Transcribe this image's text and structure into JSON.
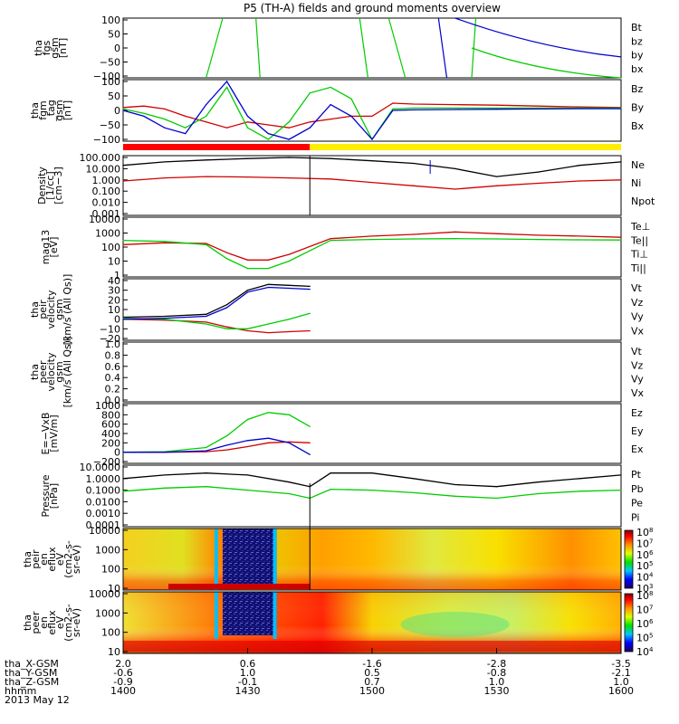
{
  "title": "P5 (TH-A) fields and ground moments overview",
  "date": "2013 May 12",
  "colors": {
    "red": "#d00000",
    "green": "#00cc00",
    "blue": "#0000d0",
    "black": "#000000",
    "yellow": "#ffee00",
    "bar_red": "#ff0000"
  },
  "panels": [
    {
      "id": "fgs",
      "ylabel": [
        "tha",
        "fgs",
        "gsm",
        "[nT]"
      ],
      "yticks": [
        "100",
        "50",
        "0",
        "−50",
        "−100"
      ],
      "legend": [
        "Bt",
        "bz",
        "by",
        "bx"
      ],
      "legend_colors": [
        "black",
        "red",
        "green",
        "blue"
      ]
    },
    {
      "id": "fgm",
      "ylabel": [
        "tha",
        "fgm",
        "_tag",
        "gsm",
        "[nT]"
      ],
      "yticks": [
        "100",
        "50",
        "0",
        "−50",
        "−100"
      ],
      "legend": [
        "Bz",
        "By",
        "Bx"
      ],
      "legend_colors": [
        "red",
        "green",
        "blue"
      ]
    },
    {
      "id": "density",
      "ylabel": [
        "Density",
        "[1/cc]",
        "[cm−3]"
      ],
      "yticks": [
        "100.000",
        "10.000",
        "1.000",
        "0.100",
        "0.010",
        "0.001"
      ],
      "legend": [
        "Ne",
        "Ni",
        "Npot"
      ],
      "legend_colors": [
        "red",
        "black",
        "blue"
      ]
    },
    {
      "id": "temp",
      "ylabel": [
        "mag13",
        "[eV]"
      ],
      "yticks": [
        "10000",
        "1000",
        "100",
        "10",
        "1"
      ],
      "legend": [
        "Te⊥",
        "Te||",
        "Ti⊥",
        "Ti||"
      ],
      "legend_colors": [
        "red",
        "black",
        "blue",
        "green"
      ]
    },
    {
      "id": "peir",
      "ylabel": [
        "tha",
        "peir",
        "velocity",
        "gsm",
        "[km/s (All Qs)]"
      ],
      "yticks": [
        "40",
        "30",
        "20",
        "10",
        "0",
        "−10",
        "−20"
      ],
      "legend": [
        "Vt",
        "Vz",
        "Vy",
        "Vx"
      ],
      "legend_colors": [
        "black",
        "red",
        "green",
        "blue"
      ]
    },
    {
      "id": "peer",
      "ylabel": [
        "tha",
        "peer",
        "velocity",
        "gsm",
        "[km/s (All Qs)]"
      ],
      "yticks": [
        "1.0",
        "0.8",
        "0.6",
        "0.4",
        "0.2",
        "0.0"
      ],
      "legend": [
        "Vt",
        "Vz",
        "Vy",
        "Vx"
      ],
      "legend_colors": [
        "black",
        "red",
        "green",
        "blue"
      ]
    },
    {
      "id": "efield",
      "ylabel": [
        "E=−VxB",
        "[mV/m]"
      ],
      "yticks": [
        "1000",
        "800",
        "600",
        "400",
        "200",
        "0",
        "−200"
      ],
      "legend": [
        "Ez",
        "Ey",
        "Ex"
      ],
      "legend_colors": [
        "red",
        "green",
        "blue"
      ]
    },
    {
      "id": "pressure",
      "ylabel": [
        "Pressure",
        "[nPa]"
      ],
      "yticks": [
        "10.0000",
        "1.0000",
        "0.1000",
        "0.0100",
        "0.0010",
        "0.0001"
      ],
      "legend": [
        "Pt",
        "Pb",
        "Pe",
        "Pi"
      ],
      "legend_colors": [
        "black",
        "red",
        "green",
        "blue"
      ]
    },
    {
      "id": "peir_eflux",
      "ylabel": [
        "tha",
        "peir",
        "en",
        "eflux",
        "eV",
        "(cm2-s-",
        "sr-eV)"
      ],
      "yticks": [
        "10000",
        "1000",
        "100",
        "10"
      ],
      "colorbar": [
        "108",
        "107",
        "106",
        "105",
        "104",
        "103"
      ]
    },
    {
      "id": "peer_eflux",
      "ylabel": [
        "tha",
        "peer",
        "en",
        "eflux",
        "eV",
        "(cm2-s-",
        "sr-eV)"
      ],
      "yticks": [
        "10000",
        "1000",
        "100",
        "10"
      ],
      "colorbar": [
        "108",
        "107",
        "106",
        "105",
        "104"
      ]
    }
  ],
  "xaxis": {
    "rows": [
      {
        "label": "tha_X-GSM",
        "values": [
          "2.0",
          "0.6",
          "-1.6",
          "-2.8",
          "-3.5"
        ]
      },
      {
        "label": "tha_Y-GSM",
        "values": [
          "-0.6",
          "1.0",
          "0.5",
          "-0.8",
          "-2.1"
        ]
      },
      {
        "label": "tha_Z-GSM",
        "values": [
          "-0.9",
          "-0.1",
          "0.7",
          "1.0",
          "1.0"
        ]
      },
      {
        "label": "hhmm",
        "values": [
          "1400",
          "1430",
          "1500",
          "1530",
          "1600"
        ]
      }
    ]
  },
  "chart_data": {
    "type": "line",
    "x_unit": "hhmm",
    "xlim": [
      "1400",
      "1600"
    ],
    "panels": {
      "fgm": {
        "ylim": [
          -100,
          100
        ],
        "series": [
          {
            "name": "Bz",
            "x": [
              1400,
              1405,
              1410,
              1415,
              1420,
              1425,
              1430,
              1435,
              1440,
              1445,
              1450,
              1455,
              1500,
              1505,
              1510,
              1520,
              1530,
              1540,
              1550,
              1600
            ],
            "y": [
              10,
              15,
              5,
              -20,
              -40,
              -60,
              -40,
              -50,
              -60,
              -40,
              -30,
              -20,
              -20,
              25,
              22,
              20,
              18,
              15,
              12,
              10
            ]
          },
          {
            "name": "By",
            "x": [
              1400,
              1405,
              1410,
              1415,
              1420,
              1425,
              1430,
              1435,
              1440,
              1445,
              1450,
              1455,
              1500,
              1505,
              1510,
              1520,
              1530,
              1540,
              1550,
              1600
            ],
            "y": [
              5,
              -10,
              -30,
              -60,
              -20,
              80,
              -60,
              -100,
              -40,
              60,
              80,
              40,
              -100,
              5,
              8,
              8,
              8,
              8,
              8,
              8
            ]
          },
          {
            "name": "Bx",
            "x": [
              1400,
              1405,
              1410,
              1415,
              1420,
              1425,
              1430,
              1435,
              1440,
              1445,
              1450,
              1455,
              1500,
              1505,
              1510,
              1520,
              1530,
              1540,
              1550,
              1600
            ],
            "y": [
              0,
              -20,
              -60,
              -80,
              20,
              100,
              -20,
              -80,
              -100,
              -60,
              20,
              -20,
              -100,
              0,
              2,
              3,
              4,
              5,
              6,
              6
            ]
          }
        ]
      },
      "density": {
        "scale": "log",
        "ylim": [
          0.001,
          100
        ],
        "series": [
          {
            "name": "Ne",
            "x": [
              1400,
              1410,
              1420,
              1430,
              1440,
              1450,
              1500,
              1510,
              1520,
              1530,
              1540,
              1550,
              1600
            ],
            "y": [
              0.8,
              1.5,
              2,
              1.8,
              1.5,
              1.2,
              0.6,
              0.3,
              0.15,
              0.3,
              0.5,
              0.8,
              1.0
            ]
          },
          {
            "name": "Ni",
            "x": [
              1400,
              1410,
              1420,
              1430,
              1440,
              1450,
              1500,
              1510,
              1520,
              1530,
              1540,
              1550,
              1600
            ],
            "y": [
              20,
              40,
              60,
              80,
              100,
              80,
              50,
              30,
              10,
              2,
              5,
              20,
              40
            ]
          }
        ]
      },
      "temp": {
        "scale": "log",
        "ylim": [
          1,
          10000
        ],
        "series": [
          {
            "name": "Te⊥",
            "x": [
              1400,
              1410,
              1420,
              1425,
              1430,
              1435,
              1440,
              1450,
              1500,
              1510,
              1520,
              1530,
              1540,
              1550,
              1600
            ],
            "y": [
              150,
              200,
              180,
              40,
              12,
              12,
              30,
              400,
              600,
              800,
              1200,
              900,
              700,
              600,
              500
            ]
          },
          {
            "name": "Ti||",
            "x": [
              1400,
              1410,
              1420,
              1425,
              1430,
              1435,
              1440,
              1450,
              1500,
              1510,
              1520,
              1530,
              1540,
              1550,
              1600
            ],
            "y": [
              300,
              250,
              150,
              15,
              3,
              3,
              10,
              300,
              350,
              380,
              400,
              380,
              350,
              330,
              320
            ]
          }
        ]
      },
      "peir": {
        "ylim": [
          -20,
          40
        ],
        "series": [
          {
            "name": "Vt",
            "x": [
              1400,
              1410,
              1420,
              1425,
              1430,
              1435,
              1440,
              1445
            ],
            "y": [
              2,
              3,
              5,
              15,
              30,
              36,
              35,
              34
            ]
          },
          {
            "name": "Vz",
            "x": [
              1400,
              1410,
              1420,
              1425,
              1430,
              1435,
              1440,
              1445
            ],
            "y": [
              0,
              -1,
              -3,
              -8,
              -12,
              -14,
              -13,
              -12
            ]
          },
          {
            "name": "Vy",
            "x": [
              1400,
              1410,
              1420,
              1425,
              1430,
              1435,
              1440,
              1445
            ],
            "y": [
              1,
              0,
              -5,
              -10,
              -10,
              -5,
              0,
              6
            ]
          },
          {
            "name": "Vx",
            "x": [
              1400,
              1410,
              1420,
              1425,
              1430,
              1435,
              1440,
              1445
            ],
            "y": [
              0,
              1,
              3,
              12,
              28,
              33,
              32,
              31
            ]
          }
        ]
      },
      "efield": {
        "ylim": [
          -200,
          1000
        ],
        "series": [
          {
            "name": "Ez",
            "x": [
              1400,
              1410,
              1420,
              1425,
              1430,
              1435,
              1440,
              1445
            ],
            "y": [
              0,
              0,
              10,
              50,
              120,
              200,
              220,
              200
            ]
          },
          {
            "name": "Ey",
            "x": [
              1400,
              1410,
              1420,
              1425,
              1430,
              1435,
              1440,
              1445
            ],
            "y": [
              0,
              10,
              100,
              350,
              700,
              850,
              800,
              550
            ]
          },
          {
            "name": "Ex",
            "x": [
              1400,
              1410,
              1420,
              1425,
              1430,
              1435,
              1440,
              1445
            ],
            "y": [
              0,
              0,
              30,
              150,
              250,
              300,
              200,
              -50
            ]
          }
        ]
      },
      "pressure": {
        "scale": "log",
        "ylim": [
          0.0001,
          10
        ],
        "series": [
          {
            "name": "Pt",
            "x": [
              1400,
              1410,
              1420,
              1430,
              1440,
              1445,
              1450,
              1500,
              1510,
              1520,
              1530,
              1540,
              1550,
              1600
            ],
            "y": [
              1,
              2,
              3,
              2,
              0.5,
              0.2,
              3,
              3,
              1,
              0.3,
              0.2,
              0.5,
              1,
              2
            ]
          },
          {
            "name": "Pe",
            "x": [
              1400,
              1410,
              1420,
              1430,
              1440,
              1445,
              1450,
              1500,
              1510,
              1520,
              1530,
              1540,
              1550,
              1600
            ],
            "y": [
              0.08,
              0.15,
              0.2,
              0.1,
              0.05,
              0.02,
              0.12,
              0.1,
              0.06,
              0.03,
              0.02,
              0.05,
              0.08,
              0.1
            ]
          }
        ]
      }
    }
  }
}
